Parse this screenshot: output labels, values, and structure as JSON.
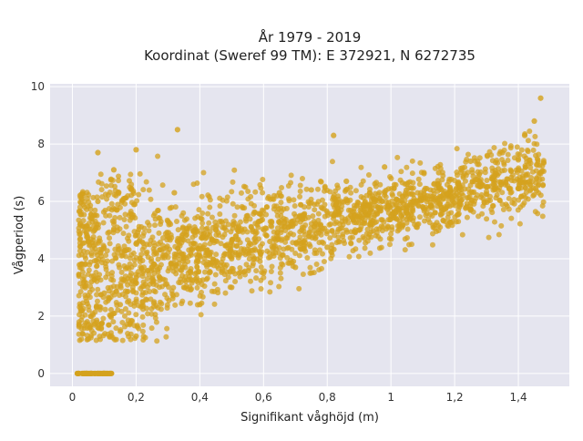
{
  "chart_data": {
    "type": "scatter",
    "title_lines": [
      "År 1979 - 2019",
      "Koordinat (Sweref 99 TM): E 372921, N 6272735"
    ],
    "xlabel": "Signifikant våghöjd (m)",
    "ylabel": "Vågperiod (s)",
    "xlim": [
      -0.07,
      1.56
    ],
    "ylim": [
      -0.45,
      10.1
    ],
    "xticks": [
      0,
      0.2,
      0.4,
      0.6,
      0.8,
      1,
      1.2,
      1.4
    ],
    "xtick_labels": [
      "0",
      "0,2",
      "0,4",
      "0,6",
      "0,8",
      "1",
      "1,2",
      "1,4"
    ],
    "yticks": [
      0,
      2,
      4,
      6,
      8,
      10
    ],
    "ytick_labels": [
      "0",
      "2",
      "4",
      "6",
      "8",
      "10"
    ],
    "grid": true,
    "legend": false,
    "colors": {
      "marker": "#D4A21E",
      "plot_background": "#E5E5EF",
      "grid": "#FFFFFF"
    },
    "series": [
      {
        "points": [
          [
            0.02,
            0
          ],
          [
            0.04,
            0
          ],
          [
            0.06,
            0
          ],
          [
            0.08,
            0
          ],
          [
            0.1,
            0
          ],
          [
            0.12,
            0
          ],
          [
            0.05,
            1.2
          ],
          [
            0.08,
            1.6
          ],
          [
            0.12,
            2.0
          ],
          [
            0.15,
            2.4
          ],
          [
            0.1,
            2.8
          ],
          [
            0.06,
            3.2
          ],
          [
            0.04,
            3.8
          ],
          [
            0.05,
            4.6
          ],
          [
            0.06,
            5.4
          ],
          [
            0.08,
            6.0
          ],
          [
            0.08,
            7.7
          ],
          [
            0.13,
            7.1
          ],
          [
            0.2,
            1.3
          ],
          [
            0.22,
            2.5
          ],
          [
            0.25,
            3.3
          ],
          [
            0.28,
            4.3
          ],
          [
            0.3,
            5.3
          ],
          [
            0.32,
            6.3
          ],
          [
            0.2,
            7.8
          ],
          [
            0.33,
            8.5
          ],
          [
            0.35,
            3.0
          ],
          [
            0.4,
            2.4
          ],
          [
            0.42,
            3.8
          ],
          [
            0.45,
            5.0
          ],
          [
            0.5,
            3.0
          ],
          [
            0.5,
            4.0
          ],
          [
            0.55,
            5.5
          ],
          [
            0.6,
            3.5
          ],
          [
            0.62,
            4.6
          ],
          [
            0.65,
            6.3
          ],
          [
            0.7,
            3.7
          ],
          [
            0.72,
            5.0
          ],
          [
            0.75,
            6.4
          ],
          [
            0.8,
            4.4
          ],
          [
            0.82,
            5.5
          ],
          [
            0.82,
            8.3
          ],
          [
            0.86,
            6.7
          ],
          [
            0.9,
            5.0
          ],
          [
            0.95,
            6.0
          ],
          [
            0.98,
            7.2
          ],
          [
            1.0,
            5.5
          ],
          [
            1.05,
            6.6
          ],
          [
            1.1,
            5.8
          ],
          [
            1.15,
            7.0
          ],
          [
            1.2,
            6.2
          ],
          [
            1.25,
            7.4
          ],
          [
            1.3,
            6.5
          ],
          [
            1.35,
            7.7
          ],
          [
            1.4,
            7.1
          ],
          [
            1.42,
            8.3
          ],
          [
            1.45,
            8.8
          ],
          [
            1.47,
            9.6
          ]
        ]
      }
    ]
  }
}
